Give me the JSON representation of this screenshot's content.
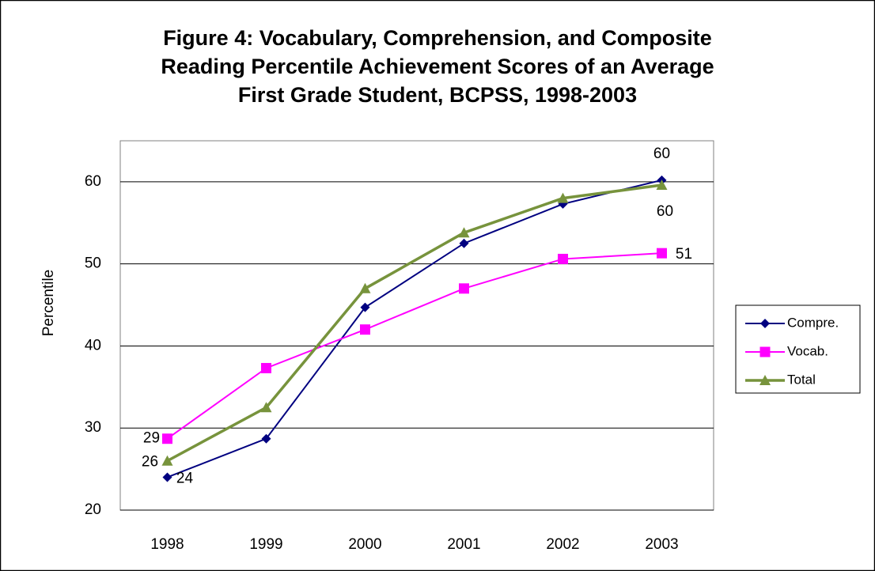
{
  "chart_data": {
    "type": "line",
    "title": [
      "Figure 4: Vocabulary, Comprehension, and Composite",
      "Reading Percentile Achievement Scores of an Average",
      "First Grade Student, BCPSS, 1998-2003"
    ],
    "y_label": "Percentile",
    "categories": [
      "1998",
      "1999",
      "2000",
      "2001",
      "2002",
      "2003"
    ],
    "ylim": [
      20,
      65
    ],
    "yticks": [
      20,
      30,
      40,
      50,
      60
    ],
    "grid": true,
    "legend": "right",
    "series": [
      {
        "name": "Compre.",
        "color": "#000080",
        "marker": "diamond",
        "values": [
          24,
          28.7,
          44.7,
          52.5,
          57.3,
          60.2
        ],
        "value_labels": [
          "24",
          null,
          null,
          null,
          null,
          "60"
        ]
      },
      {
        "name": "Vocab.",
        "color": "#ff00ff",
        "marker": "square",
        "values": [
          28.7,
          37.3,
          42,
          47,
          50.6,
          51.3
        ],
        "value_labels": [
          "29",
          null,
          null,
          null,
          null,
          "51"
        ]
      },
      {
        "name": "Total",
        "color": "#77933c",
        "marker": "triangle",
        "values": [
          26,
          32.5,
          47,
          53.8,
          58,
          59.6
        ],
        "value_labels": [
          "26",
          null,
          null,
          null,
          null,
          "60"
        ]
      }
    ]
  }
}
